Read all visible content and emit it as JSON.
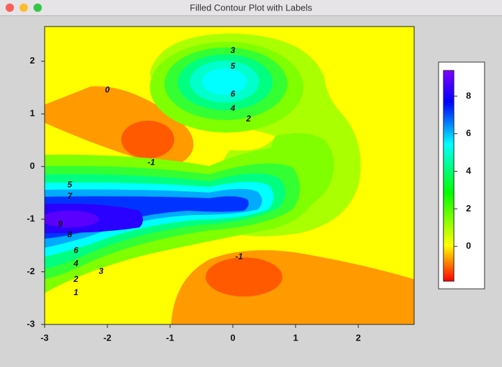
{
  "chart_data": {
    "type": "contour",
    "title": "Filled Contour Plot with Labels",
    "xlim": [
      -3,
      2.89
    ],
    "ylim": [
      -3,
      2.66
    ],
    "xticks": [
      -3,
      -2,
      -1,
      0,
      1,
      2
    ],
    "yticks": [
      -3,
      -2,
      -1,
      0,
      1,
      2
    ],
    "colorbar": {
      "lim": [
        -1.85,
        9.37
      ],
      "ticks": [
        0,
        2,
        4,
        6,
        8
      ]
    },
    "contour_labels": {
      "x": [
        0,
        0,
        0,
        0,
        0.25,
        -2,
        -1.3,
        -2.6,
        -2.6,
        -2.75,
        -2.6,
        -2.5,
        -2.5,
        -2.1,
        -2.5,
        -2.5,
        0.1
      ],
      "y": [
        2.2,
        1.9,
        1.37,
        1.1,
        0.9,
        1.45,
        0.07,
        -0.35,
        -0.57,
        -1.1,
        -1.3,
        -1.6,
        -1.85,
        -2,
        -2.15,
        -2.4,
        -1.72
      ],
      "values": [
        3,
        5,
        6,
        4,
        2,
        0,
        -1,
        5,
        7,
        9,
        8,
        6,
        4,
        3,
        2,
        1,
        -1
      ]
    }
  }
}
